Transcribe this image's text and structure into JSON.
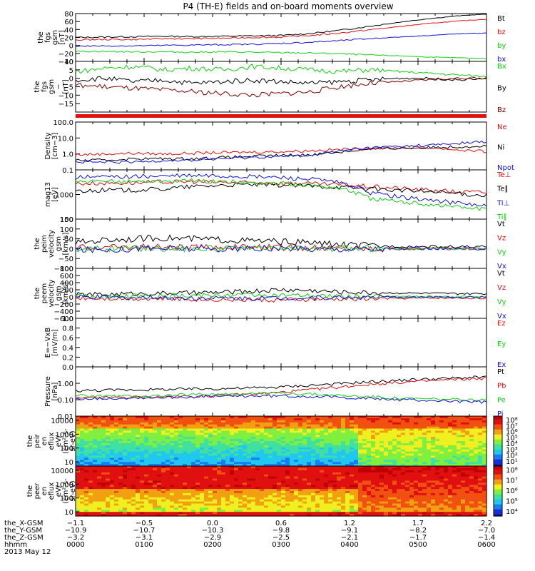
{
  "title": "P4 (TH-E) fields and on-board moments overview",
  "date": "2013 May 12",
  "colors": {
    "black": "#000000",
    "red": "#e01010",
    "green": "#10d010",
    "blue": "#1010e0",
    "dark_red": "#800000"
  },
  "chart_data": [
    {
      "type": "line",
      "id": "fgs_gsm",
      "ylabel": [
        "the",
        "fgs",
        "gsm",
        "[nT]"
      ],
      "ylim": [
        -40,
        80
      ],
      "ticks": [
        "80",
        "60",
        "40",
        "20",
        "0",
        "−20",
        "−40"
      ],
      "series": [
        {
          "name": "Bt",
          "color": "black",
          "values": [
            20,
            21,
            22,
            23,
            22,
            23,
            24,
            25,
            30,
            38,
            48,
            58,
            67,
            74,
            79
          ]
        },
        {
          "name": "bz",
          "color": "red",
          "values": [
            14,
            15,
            15,
            17,
            17,
            18,
            20,
            21,
            25,
            31,
            39,
            47,
            55,
            61,
            66
          ]
        },
        {
          "name": "by",
          "color": "green",
          "values": [
            -15,
            -15,
            -16,
            -16,
            -17,
            -16,
            -17,
            -18,
            -19,
            -21,
            -24,
            -26,
            -29,
            -31,
            -33
          ]
        },
        {
          "name": "bx",
          "color": "blue",
          "values": [
            -2,
            -1,
            -1,
            0,
            1,
            2,
            3,
            5,
            8,
            12,
            17,
            21,
            25,
            29,
            31
          ]
        }
      ]
    },
    {
      "type": "line",
      "id": "fgs_gsm_detrend",
      "ylabel": [
        "the",
        "fgs",
        "gsm",
        "−",
        "[nT]"
      ],
      "ylim": [
        -20,
        10
      ],
      "ticks": [
        "10",
        "5",
        "0",
        "−5",
        "−10",
        "−15"
      ],
      "series": [
        {
          "name": "Bx",
          "color": "green",
          "values": [
            4,
            6,
            7,
            5,
            6,
            5,
            7,
            6,
            5,
            4,
            5,
            4,
            3,
            2,
            1
          ]
        },
        {
          "name": "By",
          "color": "black",
          "values": [
            -1,
            0,
            -2,
            -1,
            -3,
            -2,
            -1,
            -2,
            -3,
            -2,
            -1,
            0,
            0,
            -1,
            0
          ]
        },
        {
          "name": "Bz",
          "color": "dark_red",
          "values": [
            -4,
            -5,
            -6,
            -7,
            -8,
            -9,
            -10,
            -9,
            -8,
            -5,
            -3,
            -2,
            -1,
            0,
            0
          ]
        }
      ]
    },
    {
      "type": "line",
      "id": "density",
      "log": true,
      "ylabel": [
        "Density",
        "[cm−3]"
      ],
      "ylim": [
        0.1,
        100
      ],
      "ticks": [
        "100.0",
        "10.0",
        "1.0",
        "0.1"
      ],
      "series": [
        {
          "name": "Ne",
          "color": "red",
          "values": [
            0.9,
            1.0,
            1.1,
            1.0,
            1.1,
            1.2,
            1.3,
            1.4,
            1.6,
            1.9,
            2.2,
            2.4,
            2.5,
            1.8,
            1.4
          ]
        },
        {
          "name": "Ni",
          "color": "black",
          "values": [
            0.4,
            0.4,
            0.5,
            0.5,
            0.5,
            0.6,
            0.7,
            0.8,
            0.9,
            1.3,
            2.0,
            2.3,
            2.5,
            2.8,
            3.2
          ]
        },
        {
          "name": "Npot",
          "color": "blue",
          "values": [
            0.3,
            0.3,
            0.3,
            0.4,
            0.4,
            0.5,
            0.6,
            0.7,
            0.8,
            1.5,
            2.4,
            3.0,
            3.5,
            4.5,
            6.0
          ]
        }
      ]
    },
    {
      "type": "line",
      "id": "temperature",
      "log": true,
      "ylabel": [
        "mag13",
        "[eV]"
      ],
      "ylim": [
        100,
        10000
      ],
      "ticks": [
        "1000",
        "100"
      ],
      "series": [
        {
          "name": "Te⊥",
          "color": "red",
          "values": [
            2800,
            2900,
            3000,
            3200,
            3300,
            3100,
            3000,
            2900,
            2700,
            2500,
            2100,
            1800,
            1500,
            1300,
            1200
          ]
        },
        {
          "name": "Te∥",
          "color": "black",
          "values": [
            1400,
            1500,
            1500,
            1700,
            2100,
            2400,
            2500,
            2400,
            2200,
            2000,
            1700,
            1500,
            1300,
            1100,
            900
          ]
        },
        {
          "name": "Ti⊥",
          "color": "blue",
          "values": [
            5000,
            5200,
            5400,
            5600,
            5800,
            5600,
            5300,
            4900,
            4200,
            3000,
            1200,
            800,
            600,
            450,
            350
          ]
        },
        {
          "name": "Ti∥",
          "color": "green",
          "values": [
            3200,
            3300,
            3400,
            3500,
            3600,
            3300,
            3000,
            2800,
            2400,
            1800,
            700,
            500,
            400,
            320,
            250
          ]
        }
      ]
    },
    {
      "type": "line",
      "id": "peim_velocity",
      "ylabel": [
        "the",
        "peim",
        "velocity",
        "gsm",
        "[km/s]"
      ],
      "ylim": [
        -100,
        150
      ],
      "ticks": [
        "150",
        "100",
        "50",
        "0",
        "−50",
        "−100"
      ],
      "series": [
        {
          "name": "Vt",
          "color": "black",
          "values": [
            30,
            45,
            50,
            55,
            50,
            45,
            40,
            35,
            30,
            20,
            15,
            12,
            10,
            10,
            8
          ]
        },
        {
          "name": "Vz",
          "color": "red",
          "values": [
            5,
            8,
            10,
            6,
            5,
            8,
            7,
            6,
            4,
            2,
            1,
            0,
            0,
            1,
            0
          ]
        },
        {
          "name": "Vy",
          "color": "green",
          "values": [
            -2,
            0,
            3,
            2,
            1,
            0,
            -1,
            0,
            0,
            1,
            0,
            0,
            0,
            0,
            0
          ]
        },
        {
          "name": "Vx",
          "color": "blue",
          "values": [
            -5,
            -3,
            0,
            2,
            0,
            -2,
            -1,
            0,
            0,
            0,
            1,
            0,
            0,
            0,
            0
          ]
        }
      ]
    },
    {
      "type": "line",
      "id": "peem_velocity",
      "ylabel": [
        "the",
        "peem",
        "velocity",
        "gsm",
        "[km/s]"
      ],
      "ylim": [
        -600,
        800
      ],
      "ticks": [
        "800",
        "600",
        "400",
        "200",
        "0",
        "−200",
        "−400",
        "−600"
      ],
      "series": [
        {
          "name": "Vt",
          "color": "black",
          "values": [
            60,
            70,
            90,
            100,
            110,
            130,
            160,
            200,
            180,
            140,
            120,
            110,
            100,
            90,
            85
          ]
        },
        {
          "name": "Vz",
          "color": "red",
          "values": [
            -20,
            -30,
            -40,
            -50,
            -60,
            -70,
            -80,
            -90,
            -70,
            -60,
            -50,
            -40,
            -30,
            -30,
            -30
          ]
        },
        {
          "name": "Vy",
          "color": "green",
          "values": [
            10,
            20,
            30,
            30,
            40,
            50,
            60,
            40,
            30,
            20,
            15,
            10,
            10,
            10,
            10
          ]
        },
        {
          "name": "Vx",
          "color": "blue",
          "values": [
            -10,
            -10,
            -20,
            -20,
            -30,
            -30,
            -40,
            -30,
            -20,
            -10,
            -10,
            -5,
            -5,
            -5,
            -5
          ]
        }
      ]
    },
    {
      "type": "line",
      "id": "efield",
      "ylabel": [
        "E=−VxB",
        "[mV/m]"
      ],
      "ylim": [
        0,
        1
      ],
      "ticks": [
        "1.0",
        "0.8",
        "0.6",
        "0.4",
        "0.2",
        "0.0"
      ],
      "series": [
        {
          "name": "Ez",
          "color": "red",
          "values": []
        },
        {
          "name": "Ey",
          "color": "green",
          "values": []
        },
        {
          "name": "Ex",
          "color": "blue",
          "values": []
        }
      ]
    },
    {
      "type": "line",
      "id": "pressure",
      "log": true,
      "ylabel": [
        "Pressure",
        "[nPa]"
      ],
      "ylim": [
        0.01,
        10
      ],
      "ticks": [
        "1.00",
        "0.10",
        "0.01"
      ],
      "series": [
        {
          "name": "Pt",
          "color": "black",
          "values": [
            0.35,
            0.38,
            0.4,
            0.42,
            0.45,
            0.48,
            0.52,
            0.6,
            0.75,
            0.95,
            1.2,
            1.5,
            1.8,
            2.1,
            2.4
          ]
        },
        {
          "name": "Pb",
          "color": "red",
          "values": [
            0.12,
            0.13,
            0.14,
            0.15,
            0.16,
            0.18,
            0.22,
            0.28,
            0.4,
            0.58,
            0.85,
            1.1,
            1.4,
            1.7,
            2.0
          ]
        },
        {
          "name": "Pe",
          "color": "green",
          "values": [
            0.18,
            0.17,
            0.16,
            0.18,
            0.2,
            0.22,
            0.24,
            0.25,
            0.22,
            0.18,
            0.15,
            0.12,
            0.11,
            0.1,
            0.09
          ]
        },
        {
          "name": "Pi",
          "color": "blue",
          "values": [
            0.12,
            0.12,
            0.13,
            0.14,
            0.15,
            0.16,
            0.17,
            0.17,
            0.16,
            0.14,
            0.12,
            0.1,
            0.09,
            0.08,
            0.07
          ]
        }
      ]
    },
    {
      "type": "heatmap",
      "id": "peir_spec",
      "ylabel": [
        "the",
        "peir",
        "en",
        "eflux",
        "eV/",
        "(cm²-s-",
        "sr-eV)"
      ],
      "yticks": [
        "10000",
        "1000",
        "100",
        "10"
      ],
      "cbar": [
        "10⁸",
        "10⁷",
        "10⁶",
        "10⁵",
        "10⁴",
        "10³",
        "10²",
        "10¹"
      ]
    },
    {
      "type": "heatmap",
      "id": "peer_spec",
      "ylabel": [
        "the",
        "peer",
        "en",
        "eflux",
        "eV/",
        "(cm²-s-",
        "sr-eV)"
      ],
      "yticks": [
        "10000",
        "1000",
        "100",
        "10"
      ],
      "cbar": [
        "10⁸",
        "10⁷",
        "10⁶",
        "10⁵",
        "10⁴"
      ]
    }
  ],
  "xaxis": {
    "row_labels": [
      "the_X-GSM",
      "the_Y-GSM",
      "the_Z-GSM",
      "hhmm"
    ],
    "columns": [
      [
        "−1.1",
        "−10.9",
        "−3.2",
        "0000"
      ],
      [
        "−0.5",
        "−10.7",
        "−3.1",
        "0100"
      ],
      [
        "0.0",
        "−10.3",
        "−2.9",
        "0200"
      ],
      [
        "0.6",
        "−9.8",
        "−2.5",
        "0300"
      ],
      [
        "1.2",
        "−9.1",
        "−2.1",
        "0400"
      ],
      [
        "1.7",
        "−8.2",
        "−1.7",
        "0500"
      ],
      [
        "2.2",
        "−7.0",
        "−1.4",
        "0600"
      ]
    ]
  }
}
